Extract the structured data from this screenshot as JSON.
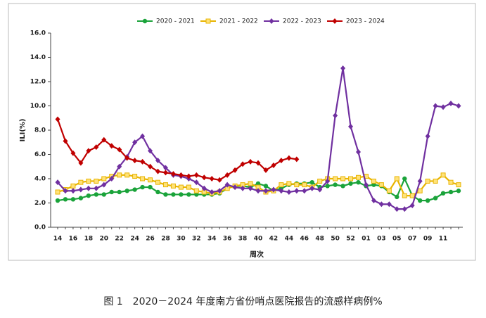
{
  "chart_data": {
    "type": "line",
    "caption": "图 1　2020－2024 年度南方省份哨点医院报告的流感样病例%",
    "xlabel": "周次",
    "ylabel": "ILI(%)",
    "categories": [
      "14",
      null,
      "16",
      null,
      "18",
      null,
      "20",
      null,
      "22",
      null,
      "24",
      null,
      "26",
      null,
      "28",
      null,
      "30",
      null,
      "32",
      null,
      "34",
      null,
      "36",
      null,
      "38",
      null,
      "40",
      null,
      "42",
      null,
      "44",
      null,
      "46",
      null,
      "48",
      null,
      "50",
      null,
      "52",
      null,
      "01",
      null,
      "03",
      null,
      "05",
      null,
      "07",
      null,
      "09",
      null,
      "11",
      null,
      null
    ],
    "ylim": [
      0,
      16
    ],
    "yticks": [
      {
        "value": 0,
        "label": "0.0"
      },
      {
        "value": 2,
        "label": "2.0"
      },
      {
        "value": 4,
        "label": "4.0"
      },
      {
        "value": 6,
        "label": "6.0"
      },
      {
        "value": 8,
        "label": "8.0"
      },
      {
        "value": 10,
        "label": "10.0"
      },
      {
        "value": 12,
        "label": "12.0"
      },
      {
        "value": 14,
        "label": "14.0"
      },
      {
        "value": 16,
        "label": "16.0"
      }
    ],
    "legend": "top",
    "series": [
      {
        "name": "2020 - 2021",
        "color": "#1aa33a",
        "marker": "circle",
        "values": [
          2.2,
          2.3,
          2.3,
          2.4,
          2.6,
          2.7,
          2.7,
          2.9,
          2.9,
          3.0,
          3.1,
          3.3,
          3.3,
          2.9,
          2.7,
          2.7,
          2.7,
          2.7,
          2.7,
          2.7,
          2.7,
          2.8,
          3.2,
          3.4,
          3.4,
          3.3,
          3.6,
          3.4,
          3.0,
          3.2,
          3.5,
          3.6,
          3.6,
          3.7,
          3.3,
          3.4,
          3.5,
          3.4,
          3.6,
          3.7,
          3.4,
          3.5,
          3.4,
          2.9,
          2.5,
          4.0,
          2.6,
          2.2,
          2.2,
          2.4,
          2.8,
          2.9,
          3.0
        ]
      },
      {
        "name": "2021 - 2022",
        "color": "#e8b400",
        "marker": "square",
        "values": [
          2.9,
          3.1,
          3.4,
          3.7,
          3.8,
          3.8,
          4.0,
          4.2,
          4.3,
          4.3,
          4.2,
          4.0,
          3.9,
          3.7,
          3.5,
          3.4,
          3.3,
          3.3,
          3.0,
          2.9,
          2.8,
          2.9,
          3.2,
          3.4,
          3.5,
          3.6,
          3.3,
          2.9,
          3.0,
          3.5,
          3.6,
          3.5,
          3.5,
          3.3,
          3.8,
          4.0,
          4.0,
          4.0,
          4.0,
          4.1,
          4.2,
          3.8,
          3.5,
          3.0,
          4.0,
          2.6,
          2.6,
          3.0,
          3.8,
          3.8,
          4.3,
          3.7,
          3.5
        ]
      },
      {
        "name": "2022 - 2023",
        "color": "#7030a0",
        "marker": "diamond",
        "values": [
          3.7,
          3.0,
          3.0,
          3.1,
          3.2,
          3.2,
          3.5,
          4.0,
          5.0,
          5.8,
          7.0,
          7.5,
          6.3,
          5.5,
          4.9,
          4.3,
          4.2,
          4.0,
          3.7,
          3.2,
          2.9,
          3.0,
          3.5,
          3.3,
          3.2,
          3.2,
          3.0,
          3.0,
          3.1,
          3.0,
          2.9,
          3.0,
          3.0,
          3.2,
          3.1,
          3.8,
          9.2,
          13.1,
          8.3,
          6.2,
          3.5,
          2.2,
          1.9,
          1.9,
          1.5,
          1.5,
          1.8,
          3.8,
          7.5,
          10.0,
          9.9,
          10.2,
          10.0
        ]
      },
      {
        "name": "2023 - 2024",
        "color": "#c00000",
        "marker": "diamond",
        "values": [
          8.9,
          7.1,
          6.1,
          5.3,
          6.3,
          6.6,
          7.2,
          6.7,
          6.4,
          5.7,
          5.5,
          5.4,
          5.0,
          4.6,
          4.5,
          4.4,
          4.3,
          4.2,
          4.3,
          4.1,
          4.0,
          3.9,
          4.3,
          4.7,
          5.2,
          5.4,
          5.3,
          4.7,
          5.1,
          5.5,
          5.7,
          5.6,
          null,
          null,
          null,
          null,
          null,
          null,
          null,
          null,
          null,
          null,
          null,
          null,
          null,
          null,
          null,
          null,
          null,
          null,
          null,
          null,
          null
        ]
      }
    ]
  }
}
